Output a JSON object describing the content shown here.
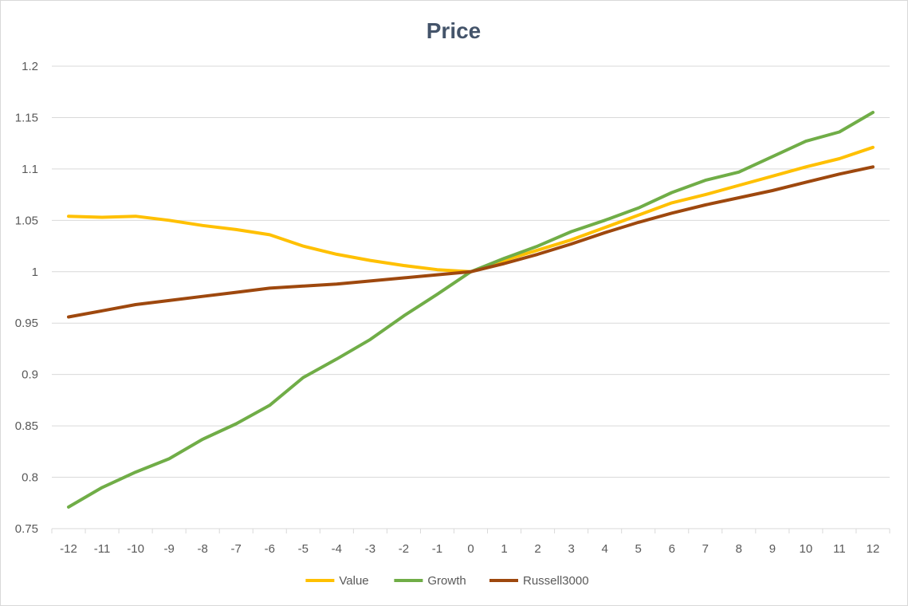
{
  "chart_data": {
    "type": "line",
    "title": "Price",
    "xlabel": "",
    "ylabel": "",
    "x": [
      -12,
      -11,
      -10,
      -9,
      -8,
      -7,
      -6,
      -5,
      -4,
      -3,
      -2,
      -1,
      0,
      1,
      2,
      3,
      4,
      5,
      6,
      7,
      8,
      9,
      10,
      11,
      12
    ],
    "ylim": [
      0.75,
      1.2
    ],
    "yticks": [
      "1.2",
      "1.15",
      "1.1",
      "1.05",
      "1",
      "0.95",
      "0.9",
      "0.85",
      "0.8",
      "0.75"
    ],
    "ytick_values": [
      1.2,
      1.15,
      1.1,
      1.05,
      1.0,
      0.95,
      0.9,
      0.85,
      0.8,
      0.75
    ],
    "grid": "horizontal",
    "legend_position": "bottom",
    "series": [
      {
        "name": "Value",
        "color": "#ffc000",
        "values": [
          1.054,
          1.053,
          1.054,
          1.05,
          1.045,
          1.041,
          1.036,
          1.025,
          1.017,
          1.011,
          1.006,
          1.002,
          1.0,
          1.011,
          1.021,
          1.031,
          1.043,
          1.055,
          1.067,
          1.075,
          1.084,
          1.093,
          1.102,
          1.11,
          1.121
        ]
      },
      {
        "name": "Growth",
        "color": "#70ad47",
        "values": [
          0.771,
          0.79,
          0.805,
          0.818,
          0.837,
          0.852,
          0.87,
          0.897,
          0.915,
          0.934,
          0.957,
          0.978,
          1.0,
          1.013,
          1.025,
          1.039,
          1.05,
          1.062,
          1.077,
          1.089,
          1.097,
          1.112,
          1.127,
          1.136,
          1.155
        ]
      },
      {
        "name": "Russell3000",
        "color": "#9e480e",
        "values": [
          0.956,
          0.962,
          0.968,
          0.972,
          0.976,
          0.98,
          0.984,
          0.986,
          0.988,
          0.991,
          0.994,
          0.997,
          1.0,
          1.008,
          1.017,
          1.027,
          1.038,
          1.048,
          1.057,
          1.065,
          1.072,
          1.079,
          1.087,
          1.095,
          1.102
        ]
      }
    ]
  }
}
